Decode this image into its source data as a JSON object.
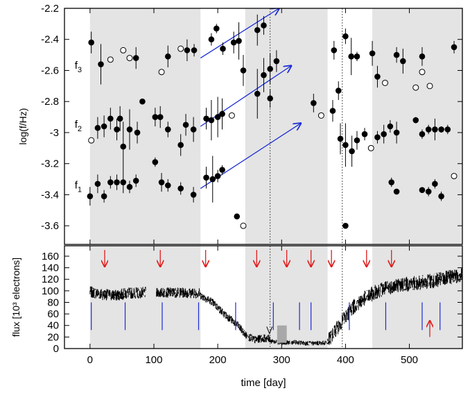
{
  "chart_data": [
    {
      "type": "scatter",
      "title": "",
      "xlabel": "time [day]",
      "ylabel": "log(f/Hz)",
      "xlim": [
        -40,
        583
      ],
      "ylim": [
        -3.72,
        -2.2
      ],
      "x_ticks": [
        0,
        100,
        200,
        300,
        400,
        500
      ],
      "y_ticks": [
        -3.6,
        -3.4,
        -3.2,
        -3,
        -2.8,
        -2.6,
        -2.4,
        -2.2
      ],
      "y_tick_labels": [
        "-3.6",
        "-3.4",
        "-3.2",
        "-3",
        "-2.8",
        "-2.6",
        "-2.4",
        "-2.2"
      ],
      "shaded_intervals": [
        [
          0,
          173
        ],
        [
          243,
          372
        ],
        [
          442,
          583
        ]
      ],
      "dotted_vlines": [
        282,
        395
      ],
      "series_labels": [
        {
          "text": "f",
          "sub": "3",
          "x": -24,
          "y": -2.59
        },
        {
          "text": "f",
          "sub": "2",
          "x": -24,
          "y": -2.97
        },
        {
          "text": "f",
          "sub": "1",
          "x": -24,
          "y": -3.36
        }
      ],
      "filled_points": [
        [
          2,
          -2.42,
          0.07
        ],
        [
          12,
          -2.97,
          0.07
        ],
        [
          17,
          -2.56,
          0.13
        ],
        [
          22,
          -2.96,
          0.07
        ],
        [
          32,
          -2.91,
          0.07
        ],
        [
          42,
          -2.98,
          0.07
        ],
        [
          47,
          -2.91,
          0.08
        ],
        [
          52,
          -3.09,
          0.16
        ],
        [
          62,
          -2.98,
          0.13
        ],
        [
          72,
          -2.52,
          0.07
        ],
        [
          74,
          -3.0,
          0.07
        ],
        [
          82,
          -2.8,
          0.0
        ],
        [
          102,
          -2.9,
          0.06
        ],
        [
          110,
          -2.9,
          0.07
        ],
        [
          122,
          -2.98,
          0.05
        ],
        [
          122,
          -2.51,
          0.07
        ],
        [
          142,
          -3.08,
          0.07
        ],
        [
          150,
          -2.95,
          0.07
        ],
        [
          152,
          -2.47,
          0.07
        ],
        [
          162,
          -2.98,
          0.08
        ],
        [
          163,
          -2.47,
          0.04
        ],
        [
          182,
          -2.91,
          0.07
        ],
        [
          190,
          -2.92,
          0.13
        ],
        [
          190,
          -2.4,
          0.04
        ],
        [
          198,
          -2.33,
          0.03
        ],
        [
          200,
          -2.9,
          0.13
        ],
        [
          207,
          -2.88,
          0.1
        ],
        [
          208,
          -2.46,
          0.04
        ],
        [
          225,
          -2.42,
          0.07
        ],
        [
          233,
          -2.41,
          0.12
        ],
        [
          240,
          -2.6,
          0.1
        ],
        [
          262,
          -2.75,
          0.16
        ],
        [
          262,
          -2.34,
          0.1
        ],
        [
          272,
          -2.63,
          0.11
        ],
        [
          272,
          -2.31,
          0.06
        ],
        [
          282,
          -2.59,
          0.1
        ],
        [
          282,
          -2.78,
          0.06
        ],
        [
          292,
          -2.54,
          0.07
        ],
        [
          350,
          -2.81,
          0.06
        ],
        [
          380,
          -2.86,
          0.07
        ],
        [
          382,
          -2.47,
          0.06
        ],
        [
          389,
          -2.73,
          0.06
        ],
        [
          392,
          -3.04,
          0.1
        ],
        [
          400,
          -2.38,
          0.05
        ],
        [
          400,
          -3.08,
          0.14
        ],
        [
          409,
          -2.51,
          0.12
        ],
        [
          410,
          -3.12,
          0.1
        ],
        [
          418,
          -2.51,
          0.03
        ],
        [
          418,
          -3.05,
          0.06
        ],
        [
          430,
          -3.01,
          0.04
        ],
        [
          442,
          -2.49,
          0.08
        ],
        [
          450,
          -2.64,
          0.07
        ],
        [
          450,
          -3.03,
          0.04
        ],
        [
          460,
          -3.01,
          0.06
        ],
        [
          470,
          -2.96,
          0.04
        ],
        [
          480,
          -2.5,
          0.05
        ],
        [
          480,
          -3.0,
          0.07
        ],
        [
          490,
          -2.54,
          0.08
        ],
        [
          510,
          -2.92,
          0.02
        ],
        [
          520,
          -2.51,
          0.06
        ],
        [
          520,
          -3.01,
          0.03
        ],
        [
          530,
          -2.98,
          0.03
        ],
        [
          540,
          -2.98,
          0.07
        ],
        [
          550,
          -2.98,
          0.02
        ],
        [
          570,
          -2.45,
          0.04
        ],
        [
          560,
          -2.98,
          0.03
        ],
        [
          0,
          -3.41,
          0.06
        ],
        [
          12,
          -3.33,
          0.06
        ],
        [
          22,
          -3.41,
          0.04
        ],
        [
          32,
          -3.32,
          0.04
        ],
        [
          42,
          -3.32,
          0.05
        ],
        [
          52,
          -3.32,
          0.07
        ],
        [
          62,
          -3.35,
          0.04
        ],
        [
          72,
          -3.31,
          0.04
        ],
        [
          102,
          -3.19,
          0.03
        ],
        [
          112,
          -3.32,
          0.06
        ],
        [
          122,
          -3.34,
          0.04
        ],
        [
          142,
          -3.36,
          0.04
        ],
        [
          162,
          -3.4,
          0.05
        ],
        [
          182,
          -3.29,
          0.07
        ],
        [
          192,
          -3.3,
          0.15
        ],
        [
          200,
          -3.28,
          0.04
        ],
        [
          207,
          -3.24,
          0.03
        ],
        [
          230,
          -3.54,
          0.0
        ],
        [
          400,
          -3.6,
          0.0
        ],
        [
          472,
          -3.32,
          0.03
        ],
        [
          480,
          -3.38,
          0.0
        ],
        [
          520,
          -3.37,
          0.0
        ],
        [
          530,
          -3.38,
          0.03
        ],
        [
          540,
          -3.33,
          0.03
        ],
        [
          550,
          -3.41,
          0.03
        ]
      ],
      "open_points": [
        [
          2,
          -3.05
        ],
        [
          32,
          -2.53
        ],
        [
          52,
          -2.47
        ],
        [
          62,
          -2.52
        ],
        [
          112,
          -2.61
        ],
        [
          142,
          -2.46
        ],
        [
          222,
          -2.89
        ],
        [
          240,
          -3.6
        ],
        [
          362,
          -2.89
        ],
        [
          440,
          -3.1
        ],
        [
          462,
          -2.68
        ],
        [
          510,
          -2.71
        ],
        [
          520,
          -2.61
        ],
        [
          532,
          -2.7
        ],
        [
          570,
          -3.28
        ]
      ],
      "trend_arrows": [
        {
          "x0": 173,
          "y0": -2.52,
          "x1": 296,
          "y1": -2.2
        },
        {
          "x0": 173,
          "y0": -2.96,
          "x1": 315,
          "y1": -2.57
        },
        {
          "x0": 173,
          "y0": -3.36,
          "x1": 330,
          "y1": -2.94
        }
      ]
    },
    {
      "type": "line",
      "title": "",
      "xlabel": "time [day]",
      "ylabel": "flux [10³ electrons]",
      "xlim": [
        -40,
        583
      ],
      "ylim": [
        0,
        178
      ],
      "x_ticks": [
        0,
        100,
        200,
        300,
        400,
        500
      ],
      "x_tick_labels": [
        "0",
        "100",
        "200",
        "300",
        "400",
        "500"
      ],
      "y_ticks": [
        0,
        20,
        40,
        60,
        80,
        100,
        120,
        140,
        160
      ],
      "y_tick_labels": [
        "0",
        "20",
        "40",
        "60",
        "80",
        "100",
        "120",
        "140",
        "160"
      ],
      "shaded_intervals": [
        [
          0,
          173
        ],
        [
          243,
          372
        ],
        [
          442,
          583
        ]
      ],
      "gap_box": {
        "x0": 293,
        "x1": 308,
        "y0": 10,
        "y1": 40
      },
      "segments": [
        {
          "x": [
            0,
            20,
            40,
            60,
            87
          ],
          "y": [
            98,
            94,
            92,
            96,
            97
          ],
          "noise": 10
        },
        {
          "x": [
            104,
            120,
            140,
            160,
            172
          ],
          "y": [
            96,
            97,
            97,
            96,
            96
          ],
          "noise": 9
        },
        {
          "x": [
            173,
            190,
            210,
            230,
            245,
            258,
            270,
            282
          ],
          "y": [
            92,
            82,
            60,
            42,
            22,
            15,
            18,
            17
          ],
          "noise": 7
        },
        {
          "x": [
            282,
            300,
            320,
            340,
            372
          ],
          "y": [
            13,
            10,
            11,
            9,
            10
          ],
          "noise": 4
        },
        {
          "x": [
            372,
            390,
            410,
            430,
            450,
            480,
            520,
            550,
            583
          ],
          "y": [
            12,
            40,
            70,
            87,
            100,
            110,
            114,
            120,
            128
          ],
          "noise": 13
        }
      ],
      "blue_markers": [
        2,
        55,
        113,
        170,
        228,
        287,
        328,
        346,
        406,
        463,
        520,
        548
      ],
      "red_arrows_top": [
        23,
        110,
        181,
        261,
        308,
        346,
        378,
        433,
        472
      ],
      "red_arrow_bottom": 532,
      "open_arrowhead": {
        "x": 281,
        "y": 26
      }
    }
  ]
}
